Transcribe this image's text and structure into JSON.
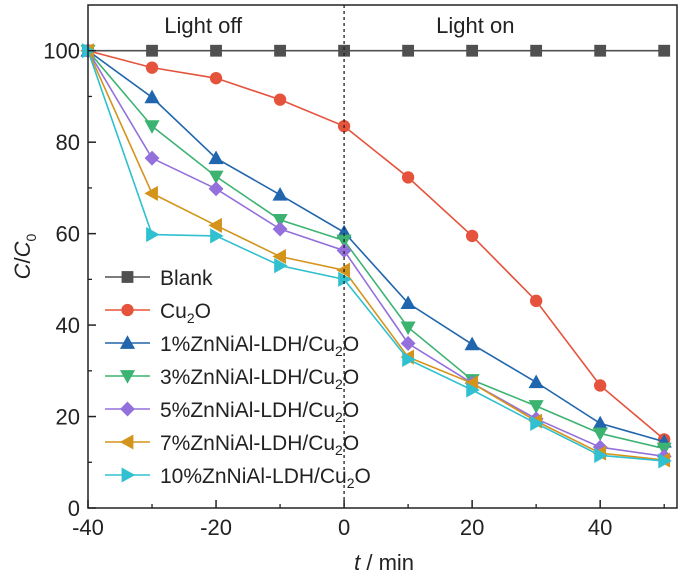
{
  "chart_data": {
    "type": "line",
    "xlabel": "t / min",
    "ylabel": "C/C0",
    "xlim": [
      -40,
      52
    ],
    "ylim": [
      0,
      110
    ],
    "xticks": [
      -40,
      -20,
      0,
      20,
      40
    ],
    "yticks": [
      0,
      20,
      40,
      60,
      80,
      100
    ],
    "xtick_labels": [
      "-40",
      "-20",
      "0",
      "20",
      "40"
    ],
    "ytick_labels": [
      "0",
      "20",
      "40",
      "60",
      "80",
      "100"
    ],
    "grid": false,
    "legend_position": "bottom-left",
    "divider_x": 0,
    "annotations": {
      "left": "Light off",
      "right": "Light on"
    },
    "x": [
      -40,
      -30,
      -20,
      -10,
      0,
      10,
      20,
      30,
      40,
      50
    ],
    "series": [
      {
        "name": "Blank",
        "label_main": "Blank",
        "label_sub": "",
        "label_tail": "",
        "color": "#505050",
        "marker": "square",
        "values": [
          100,
          100,
          100,
          100,
          100,
          100,
          100,
          100,
          100,
          100
        ]
      },
      {
        "name": "Cu2O",
        "label_main": "Cu",
        "label_sub": "2",
        "label_tail": "O",
        "color": "#e5533c",
        "marker": "circle",
        "values": [
          100,
          96.3,
          94.0,
          89.3,
          83.5,
          72.3,
          59.5,
          45.3,
          26.8,
          15.0
        ]
      },
      {
        "name": "1%ZnNiAl-LDH/Cu2O",
        "label_main": "1%ZnNiAl-LDH/Cu",
        "label_sub": "2",
        "label_tail": "O",
        "color": "#2166ac",
        "marker": "triangle-up",
        "values": [
          100,
          89.8,
          76.5,
          68.5,
          60.3,
          44.8,
          35.8,
          27.5,
          18.5,
          14.5
        ]
      },
      {
        "name": "3%ZnNiAl-LDH/Cu2O",
        "label_main": "3%ZnNiAl-LDH/Cu",
        "label_sub": "2",
        "label_tail": "O",
        "color": "#3cb371",
        "marker": "triangle-down",
        "values": [
          100,
          83.5,
          72.5,
          63.0,
          58.5,
          39.5,
          28.0,
          22.3,
          16.3,
          13.0
        ]
      },
      {
        "name": "5%ZnNiAl-LDH/Cu2O",
        "label_main": "5%ZnNiAl-LDH/Cu",
        "label_sub": "2",
        "label_tail": "O",
        "color": "#9370db",
        "marker": "diamond",
        "values": [
          100,
          76.5,
          69.8,
          61.0,
          56.3,
          36.0,
          27.3,
          19.5,
          13.3,
          11.3
        ]
      },
      {
        "name": "7%ZnNiAl-LDH/Cu2O",
        "label_main": "7%ZnNiAl-LDH/Cu",
        "label_sub": "2",
        "label_tail": "O",
        "color": "#d4941c",
        "marker": "triangle-left",
        "values": [
          100,
          68.8,
          61.8,
          55.0,
          52.0,
          33.0,
          27.3,
          19.0,
          12.0,
          10.5
        ]
      },
      {
        "name": "10%ZnNiAl-LDH/Cu2O",
        "label_main": "10%ZnNiAl-LDH/Cu",
        "label_sub": "2",
        "label_tail": "O",
        "color": "#30c0d0",
        "marker": "triangle-right",
        "values": [
          100,
          59.8,
          59.5,
          53.0,
          50.0,
          32.5,
          25.8,
          18.5,
          11.5,
          10.3
        ]
      }
    ]
  }
}
